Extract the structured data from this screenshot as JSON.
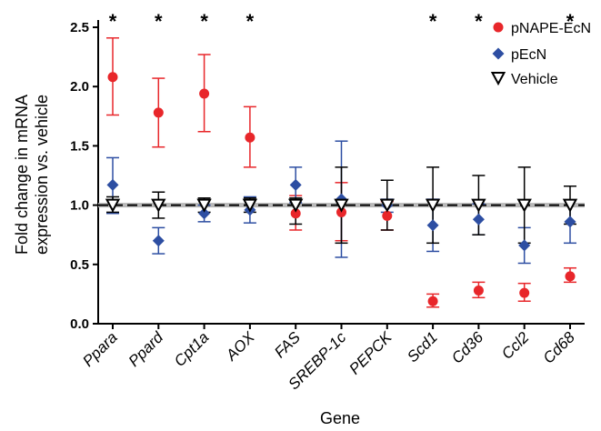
{
  "chart_data": {
    "type": "scatter",
    "title": "",
    "xlabel": "Gene",
    "ylabel": [
      "Fold change in mRNA",
      "expression vs. vehicle"
    ],
    "ylim": [
      0,
      2.5
    ],
    "yticks": [
      "0.0",
      "0.5",
      "1.0",
      "1.5",
      "2.0",
      "2.5"
    ],
    "categories": [
      "Ppara",
      "Ppard",
      "Cpt1a",
      "AOX",
      "FAS",
      "SREBP-1c",
      "PEPCK",
      "Scd1",
      "Cd36",
      "Ccl2",
      "Cd68"
    ],
    "reference_line": 1.0,
    "significant": [
      true,
      true,
      true,
      true,
      false,
      false,
      false,
      true,
      true,
      false,
      true
    ],
    "significance_marker": "*",
    "legend_position": "top-right",
    "series": [
      {
        "name": "pNAPE-EcN",
        "color": "#e8262a",
        "marker": "circle",
        "values": [
          2.08,
          1.78,
          1.94,
          1.57,
          0.93,
          0.94,
          0.91,
          0.19,
          0.28,
          0.26,
          0.4
        ],
        "err_low": [
          1.76,
          1.49,
          1.62,
          1.32,
          0.79,
          0.7,
          0.79,
          0.14,
          0.22,
          0.19,
          0.35
        ],
        "err_high": [
          2.41,
          2.07,
          2.27,
          1.83,
          1.08,
          1.19,
          1.03,
          0.25,
          0.35,
          0.34,
          0.47
        ]
      },
      {
        "name": "pEcN",
        "color": "#2d4ea2",
        "marker": "diamond",
        "values": [
          1.17,
          0.7,
          0.93,
          0.96,
          1.17,
          1.05,
          1.0,
          0.83,
          0.88,
          0.66,
          0.86
        ],
        "err_low": [
          0.93,
          0.59,
          0.86,
          0.85,
          1.02,
          0.56,
          0.94,
          0.61,
          0.75,
          0.51,
          0.68
        ],
        "err_high": [
          1.4,
          0.81,
          1.0,
          1.07,
          1.32,
          1.54,
          1.05,
          1.05,
          1.01,
          0.81,
          1.04
        ]
      },
      {
        "name": "Vehicle",
        "color": "#000000",
        "marker": "triangle-down",
        "values": [
          1.0,
          1.0,
          1.0,
          1.0,
          1.0,
          1.0,
          1.0,
          1.0,
          1.0,
          1.0,
          1.0
        ],
        "err_low": [
          0.94,
          0.89,
          0.94,
          0.94,
          0.84,
          0.68,
          0.79,
          0.68,
          0.75,
          0.68,
          0.84
        ],
        "err_high": [
          1.07,
          1.11,
          1.06,
          1.06,
          1.06,
          1.32,
          1.21,
          1.32,
          1.25,
          1.32,
          1.16
        ]
      }
    ]
  }
}
